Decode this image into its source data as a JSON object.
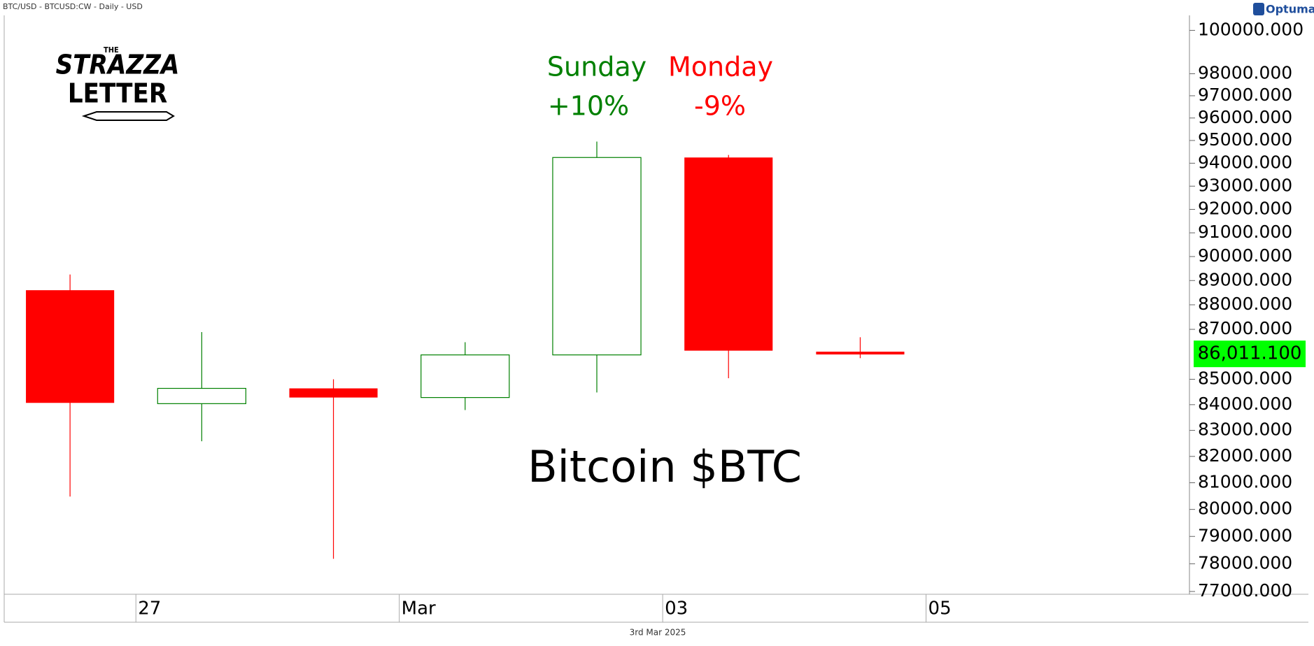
{
  "header": "BTC/USD - BTCUSD:CW - Daily - USD",
  "brand": "Optuma",
  "logo": {
    "top": "THE",
    "middle": "STRAZZA",
    "bottom": "LETTER"
  },
  "footer": "3rd Mar 2025",
  "chart_data": {
    "type": "candlestick",
    "title": "Bitcoin $BTC",
    "log_scale": true,
    "categories": [
      null,
      "27",
      null,
      "Mar",
      null,
      "03",
      null,
      "05",
      null
    ],
    "up_color": "#008000",
    "down_color": "#ff0000",
    "open": [
      88600,
      84040,
      84640,
      84280,
      85970,
      94250,
      86100,
      null,
      null
    ],
    "high": [
      89250,
      86890,
      85000,
      86480,
      94950,
      94360,
      86680,
      null,
      null
    ],
    "low": [
      80480,
      82580,
      78180,
      83790,
      84480,
      85040,
      85840,
      null,
      null
    ],
    "close": [
      84070,
      84640,
      84280,
      85970,
      94250,
      86140,
      86011.1,
      null,
      null
    ],
    "last_price": {
      "value": 86011.1,
      "label": "86,011.100",
      "color": "#00ff00"
    },
    "annotations": [
      {
        "text": "Sunday",
        "color": "#008000"
      },
      {
        "text": "+10%",
        "color": "#008000"
      },
      {
        "text": "Monday",
        "color": "#ff0000"
      },
      {
        "text": "-9%",
        "color": "#ff0000"
      }
    ],
    "ylim": [
      76900,
      100700
    ],
    "yticks": [
      {
        "value": 77000,
        "label": "77000.000"
      },
      {
        "value": 78000,
        "label": "78000.000"
      },
      {
        "value": 79000,
        "label": "79000.000"
      },
      {
        "value": 80000,
        "label": "80000.000"
      },
      {
        "value": 81000,
        "label": "81000.000"
      },
      {
        "value": 82000,
        "label": "82000.000"
      },
      {
        "value": 83000,
        "label": "83000.000"
      },
      {
        "value": 84000,
        "label": "84000.000"
      },
      {
        "value": 85000,
        "label": "85000.000"
      },
      {
        "value": 87000,
        "label": "87000.000"
      },
      {
        "value": 88000,
        "label": "88000.000"
      },
      {
        "value": 89000,
        "label": "89000.000"
      },
      {
        "value": 90000,
        "label": "90000.000"
      },
      {
        "value": 91000,
        "label": "91000.000"
      },
      {
        "value": 92000,
        "label": "92000.000"
      },
      {
        "value": 93000,
        "label": "93000.000"
      },
      {
        "value": 94000,
        "label": "94000.000"
      },
      {
        "value": 95000,
        "label": "95000.000"
      },
      {
        "value": 96000,
        "label": "96000.000"
      },
      {
        "value": 97000,
        "label": "97000.000"
      },
      {
        "value": 98000,
        "label": "98000.000"
      },
      {
        "value": 100000,
        "label": "100000.000"
      }
    ]
  }
}
